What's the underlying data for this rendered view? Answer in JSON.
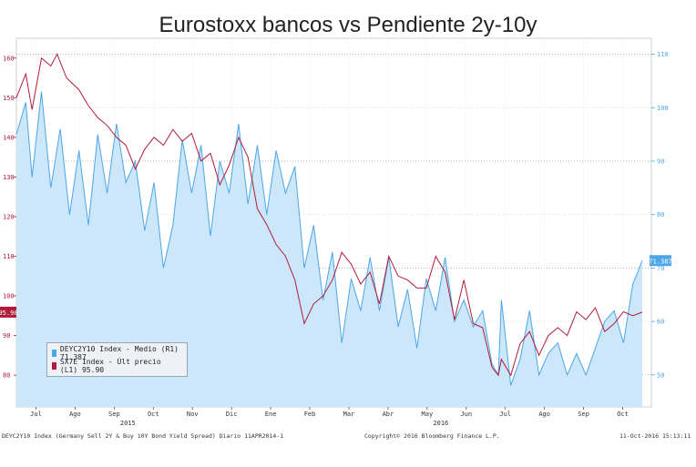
{
  "title": "Eurostoxx bancos vs Pendiente 2y-10y",
  "legend": [
    {
      "label": "DEYC2Y10 Index - Medio (R1) 71.387",
      "color": "#4da6e8"
    },
    {
      "label": "SX7E Index - Últ precio (L1)   95.90",
      "color": "#b01c3c"
    }
  ],
  "footer": {
    "left": "DEYC2Y10 Index (Germany Sell 2Y & Buy 10Y Bond Yield Spread)  Diario 11APR2014-1",
    "center": "Copyright© 2016 Bloomberg Finance L.P.",
    "right": "11-Oct-2016 15:13:11"
  },
  "chart_data": {
    "type": "area",
    "x_labels": [
      "Jul",
      "Ago",
      "Sep",
      "Oct",
      "Nov",
      "Dic",
      "Ene",
      "Feb",
      "Mar",
      "Abr",
      "May",
      "Jun",
      "Jul",
      "Ago",
      "Sep",
      "Oct"
    ],
    "year_labels": [
      {
        "label": "2015",
        "after": "Sep"
      },
      {
        "label": "2016",
        "after": "May"
      }
    ],
    "left_axis": {
      "ticks": [
        160,
        150,
        140,
        130,
        120,
        110,
        100,
        90,
        80
      ],
      "ylim": [
        72,
        165
      ],
      "last_value_label": "95.90"
    },
    "right_axis": {
      "ticks": [
        110,
        100,
        90,
        80,
        70,
        60,
        50
      ],
      "ylim": [
        44,
        113
      ],
      "last_value_label": "71.387"
    },
    "series": [
      {
        "name": "DEYC2Y10 Index - Medio (R1)",
        "axis": "right",
        "color": "#4da6e8",
        "fill": "#cce6fa",
        "x": [
          0,
          0.015,
          0.025,
          0.04,
          0.055,
          0.07,
          0.085,
          0.1,
          0.115,
          0.13,
          0.145,
          0.16,
          0.175,
          0.19,
          0.205,
          0.22,
          0.235,
          0.25,
          0.265,
          0.28,
          0.295,
          0.31,
          0.325,
          0.34,
          0.355,
          0.37,
          0.385,
          0.4,
          0.415,
          0.43,
          0.445,
          0.46,
          0.475,
          0.49,
          0.505,
          0.52,
          0.535,
          0.55,
          0.565,
          0.58,
          0.595,
          0.61,
          0.625,
          0.64,
          0.655,
          0.67,
          0.685,
          0.7,
          0.715,
          0.73,
          0.745,
          0.76,
          0.77,
          0.775,
          0.79,
          0.805,
          0.82,
          0.835,
          0.85,
          0.865,
          0.88,
          0.895,
          0.91,
          0.925,
          0.94,
          0.955,
          0.97,
          0.985,
          1.0
        ],
        "values": [
          95,
          101,
          87,
          103,
          85,
          96,
          80,
          92,
          78,
          95,
          84,
          97,
          86,
          90,
          77,
          86,
          70,
          78,
          94,
          84,
          93,
          76,
          90,
          84,
          97,
          82,
          93,
          80,
          92,
          84,
          89,
          70,
          78,
          64,
          73,
          56,
          68,
          62,
          72,
          62,
          72,
          59,
          66,
          55,
          68,
          62,
          72,
          60,
          64,
          59,
          62,
          52,
          50,
          64,
          48,
          53,
          62,
          50,
          54,
          56,
          50,
          54,
          50,
          55,
          60,
          62,
          56,
          67,
          71.387
        ]
      },
      {
        "name": "SX7E Index - Últ precio (L1)",
        "axis": "left",
        "color": "#b01c3c",
        "x": [
          0,
          0.015,
          0.025,
          0.04,
          0.055,
          0.065,
          0.08,
          0.1,
          0.115,
          0.13,
          0.145,
          0.16,
          0.175,
          0.19,
          0.205,
          0.22,
          0.235,
          0.25,
          0.265,
          0.28,
          0.295,
          0.31,
          0.325,
          0.34,
          0.355,
          0.37,
          0.385,
          0.4,
          0.415,
          0.43,
          0.445,
          0.46,
          0.475,
          0.49,
          0.505,
          0.52,
          0.535,
          0.55,
          0.565,
          0.58,
          0.595,
          0.61,
          0.625,
          0.64,
          0.655,
          0.67,
          0.685,
          0.7,
          0.715,
          0.73,
          0.745,
          0.76,
          0.77,
          0.775,
          0.79,
          0.805,
          0.82,
          0.835,
          0.85,
          0.865,
          0.88,
          0.895,
          0.91,
          0.925,
          0.94,
          0.955,
          0.97,
          0.985,
          1.0
        ],
        "values": [
          150,
          156,
          147,
          160,
          158,
          161,
          155,
          152,
          148,
          145,
          143,
          140,
          138,
          132,
          137,
          140,
          138,
          142,
          139,
          141,
          134,
          136,
          128,
          133,
          140,
          135,
          122,
          118,
          113,
          110,
          104,
          93,
          98,
          100,
          104,
          111,
          108,
          103,
          106,
          98,
          110,
          105,
          104,
          102,
          102,
          110,
          106,
          94,
          104,
          93,
          92,
          82,
          80,
          84,
          80,
          88,
          91,
          85,
          90,
          92,
          90,
          96,
          94,
          97,
          91,
          93,
          96,
          95,
          95.9
        ]
      }
    ]
  }
}
